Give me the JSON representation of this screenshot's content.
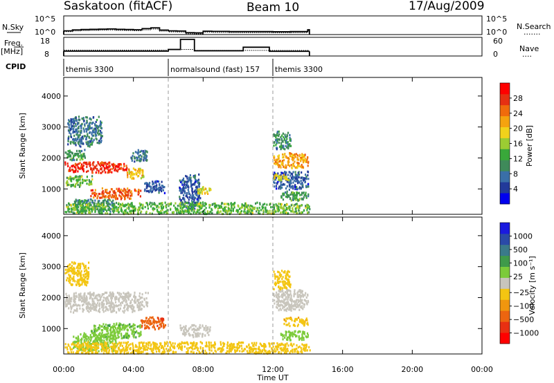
{
  "header": {
    "station": "Saskatoon (fitACF)",
    "beam": "Beam 10",
    "date": "17/Aug/2009"
  },
  "nsky_panel": {
    "label": "N.Sky",
    "left_ticks": [
      "10^5",
      "10^0"
    ],
    "right_ticks": [
      "10^5",
      "10^0"
    ],
    "right_label": "N.Search",
    "right_label_line": "......."
  },
  "freq_panel": {
    "label_top": "Freq.",
    "label_bottom": "[MHz]",
    "left_ticks": [
      "18",
      "8"
    ],
    "right_ticks": [
      "60",
      "0"
    ],
    "right_label": "Nave",
    "right_label_line": "...."
  },
  "cpid_panel": {
    "label": "CPID",
    "segments": [
      {
        "label": "themis 3300",
        "start": 0,
        "end": 6
      },
      {
        "label": "normalsound (fast) 157",
        "start": 6,
        "end": 12
      },
      {
        "label": "themis 3300",
        "start": 12,
        "end": 14.1
      }
    ]
  },
  "x_axis": {
    "ticks": [
      "00:00",
      "04:00",
      "08:00",
      "12:00",
      "16:00",
      "20:00",
      "00:00"
    ],
    "tick_hours": [
      0,
      4,
      8,
      12,
      16,
      20,
      24
    ],
    "label": "Time UT",
    "range": [
      0,
      24
    ]
  },
  "colors": {
    "power": [
      "#0000ee",
      "#223a9a",
      "#3a6fa8",
      "#3f8a5a",
      "#39a83a",
      "#9ccc33",
      "#f2d21b",
      "#f5a30f",
      "#f06b0c",
      "#e63012",
      "#ff0000"
    ],
    "velocity": [
      "#1a1adf",
      "#2a4aa8",
      "#3a7a8a",
      "#3f9a4a",
      "#7ccb3a",
      "#c8c5bc",
      "#f3c512",
      "#f0960e",
      "#ec6510",
      "#e83012",
      "#ff0000"
    ]
  },
  "chart_data": [
    {
      "type": "line",
      "panel": "N.Sky / N.Search",
      "x": [
        0,
        0.5,
        1,
        1.5,
        2,
        2.5,
        3,
        3.5,
        4,
        4.5,
        5,
        5.5,
        6,
        6.5,
        7,
        7.5,
        8,
        8.5,
        9,
        9.5,
        10,
        10.5,
        11,
        11.5,
        12,
        12.5,
        13,
        13.5,
        14,
        14.1
      ],
      "series": [
        {
          "name": "N.Sky",
          "values": [
            1.0,
            1.25,
            1.35,
            1.4,
            1.45,
            1.5,
            1.4,
            1.35,
            1.3,
            1.6,
            1.8,
            1.2,
            1.0,
            0.95,
            0.5,
            0.45,
            0.9,
            0.85,
            0.85,
            0.8,
            0.8,
            0.8,
            0.8,
            0.8,
            0.75,
            0.75,
            0.8,
            0.8,
            1.3,
            1.1
          ]
        },
        {
          "name": "N.Search",
          "values": [
            1.0,
            1.2,
            1.3,
            1.35,
            1.4,
            1.45,
            1.35,
            1.3,
            1.25,
            1.5,
            1.7,
            1.15,
            0.95,
            0.9,
            0.45,
            0.4,
            0.85,
            0.8,
            0.8,
            0.75,
            0.75,
            0.75,
            0.75,
            0.75,
            0.7,
            0.7,
            0.75,
            0.75,
            1.2,
            1.0
          ]
        }
      ],
      "ylim": [
        0,
        5
      ]
    },
    {
      "type": "line",
      "panel": "Freq / Nave",
      "x": [
        0,
        6.0,
        6.0,
        6.7,
        6.7,
        7.5,
        7.5,
        10.3,
        10.3,
        11.8,
        11.8,
        14.1
      ],
      "series": [
        {
          "name": "Freq.",
          "values": [
            10.6,
            10.6,
            11.5,
            11.5,
            16.9,
            16.9,
            10.8,
            10.8,
            12.7,
            12.7,
            10.5,
            10.5
          ]
        },
        {
          "name": "Nave",
          "values": [
            19,
            19,
            20,
            20,
            21,
            21,
            18,
            18,
            18,
            18,
            18,
            18
          ]
        }
      ],
      "ylim": [
        8,
        18
      ],
      "y2lim": [
        0,
        60
      ]
    },
    {
      "type": "heatmap",
      "panel": "Power",
      "ylabel": "Slant Range [km]",
      "y_ticks": [
        1000,
        2000,
        3000,
        4000
      ],
      "ylim": [
        180,
        4600
      ],
      "xlim": [
        0,
        24
      ],
      "colorbar": {
        "label": "Power [dB]",
        "ticks": [
          4,
          8,
          12,
          16,
          20,
          24,
          28
        ],
        "range": [
          0,
          32
        ]
      },
      "blobs": [
        {
          "x0": 0.0,
          "x1": 3.6,
          "y0": 1550,
          "y1": 1900,
          "v": 28
        },
        {
          "x0": 3.6,
          "x1": 4.6,
          "y0": 1350,
          "y1": 1700,
          "v": 20
        },
        {
          "x0": 1.5,
          "x1": 4.4,
          "y0": 700,
          "y1": 1050,
          "v": 26
        },
        {
          "x0": 0.0,
          "x1": 1.6,
          "y0": 1100,
          "y1": 1450,
          "v": 14
        },
        {
          "x0": 0.0,
          "x1": 1.2,
          "y0": 1950,
          "y1": 2300,
          "v": 12
        },
        {
          "x0": 0.2,
          "x1": 2.2,
          "y0": 2400,
          "y1": 3400,
          "v": 8
        },
        {
          "x0": 0.5,
          "x1": 3.0,
          "y0": 300,
          "y1": 700,
          "v": 10
        },
        {
          "x0": 4.6,
          "x1": 5.8,
          "y0": 900,
          "y1": 1300,
          "v": 6
        },
        {
          "x0": 3.8,
          "x1": 4.8,
          "y0": 1900,
          "y1": 2300,
          "v": 8
        },
        {
          "x0": 6.6,
          "x1": 7.8,
          "y0": 350,
          "y1": 1500,
          "v": 6
        },
        {
          "x0": 7.6,
          "x1": 8.4,
          "y0": 850,
          "y1": 1100,
          "v": 18
        },
        {
          "x0": 0.0,
          "x1": 14.1,
          "y0": 180,
          "y1": 600,
          "v": 14
        },
        {
          "x0": 12.0,
          "x1": 14.0,
          "y0": 1700,
          "y1": 2200,
          "v": 22
        },
        {
          "x0": 12.0,
          "x1": 13.0,
          "y0": 2300,
          "y1": 2900,
          "v": 10
        },
        {
          "x0": 12.0,
          "x1": 14.0,
          "y0": 1000,
          "y1": 1600,
          "v": 6
        },
        {
          "x0": 12.0,
          "x1": 13.0,
          "y0": 1300,
          "y1": 1500,
          "v": 18
        },
        {
          "x0": 12.4,
          "x1": 14.0,
          "y0": 650,
          "y1": 950,
          "v": 12
        }
      ]
    },
    {
      "type": "heatmap",
      "panel": "Velocity",
      "ylabel": "Slant Range [km]",
      "y_ticks": [
        1000,
        2000,
        3000,
        4000
      ],
      "ylim": [
        180,
        4600
      ],
      "xlim": [
        0,
        24
      ],
      "colorbar": {
        "label": "Velocity [m s⁻¹]",
        "ticks": [
          1000,
          500,
          100,
          25,
          -25,
          -100,
          -500,
          -1000
        ]
      },
      "blobs": [
        {
          "x0": 0.0,
          "x1": 4.8,
          "y0": 1550,
          "y1": 2200,
          "v": 0
        },
        {
          "x0": 1.5,
          "x1": 4.4,
          "y0": 700,
          "y1": 1200,
          "v": 80
        },
        {
          "x0": 0.0,
          "x1": 1.4,
          "y0": 2400,
          "y1": 3200,
          "v": -60
        },
        {
          "x0": 0.5,
          "x1": 3.0,
          "y0": 300,
          "y1": 900,
          "v": 60
        },
        {
          "x0": 4.4,
          "x1": 5.8,
          "y0": 1000,
          "y1": 1400,
          "v": -400
        },
        {
          "x0": 6.6,
          "x1": 8.4,
          "y0": 750,
          "y1": 1150,
          "v": 0
        },
        {
          "x0": 0.0,
          "x1": 14.1,
          "y0": 180,
          "y1": 600,
          "v": -60
        },
        {
          "x0": 12.0,
          "x1": 14.0,
          "y0": 1600,
          "y1": 2300,
          "v": 0
        },
        {
          "x0": 12.0,
          "x1": 13.0,
          "y0": 2300,
          "y1": 2900,
          "v": -30
        },
        {
          "x0": 12.6,
          "x1": 14.0,
          "y0": 1100,
          "y1": 1400,
          "v": -80
        },
        {
          "x0": 12.4,
          "x1": 14.0,
          "y0": 650,
          "y1": 950,
          "v": 60
        }
      ]
    }
  ]
}
